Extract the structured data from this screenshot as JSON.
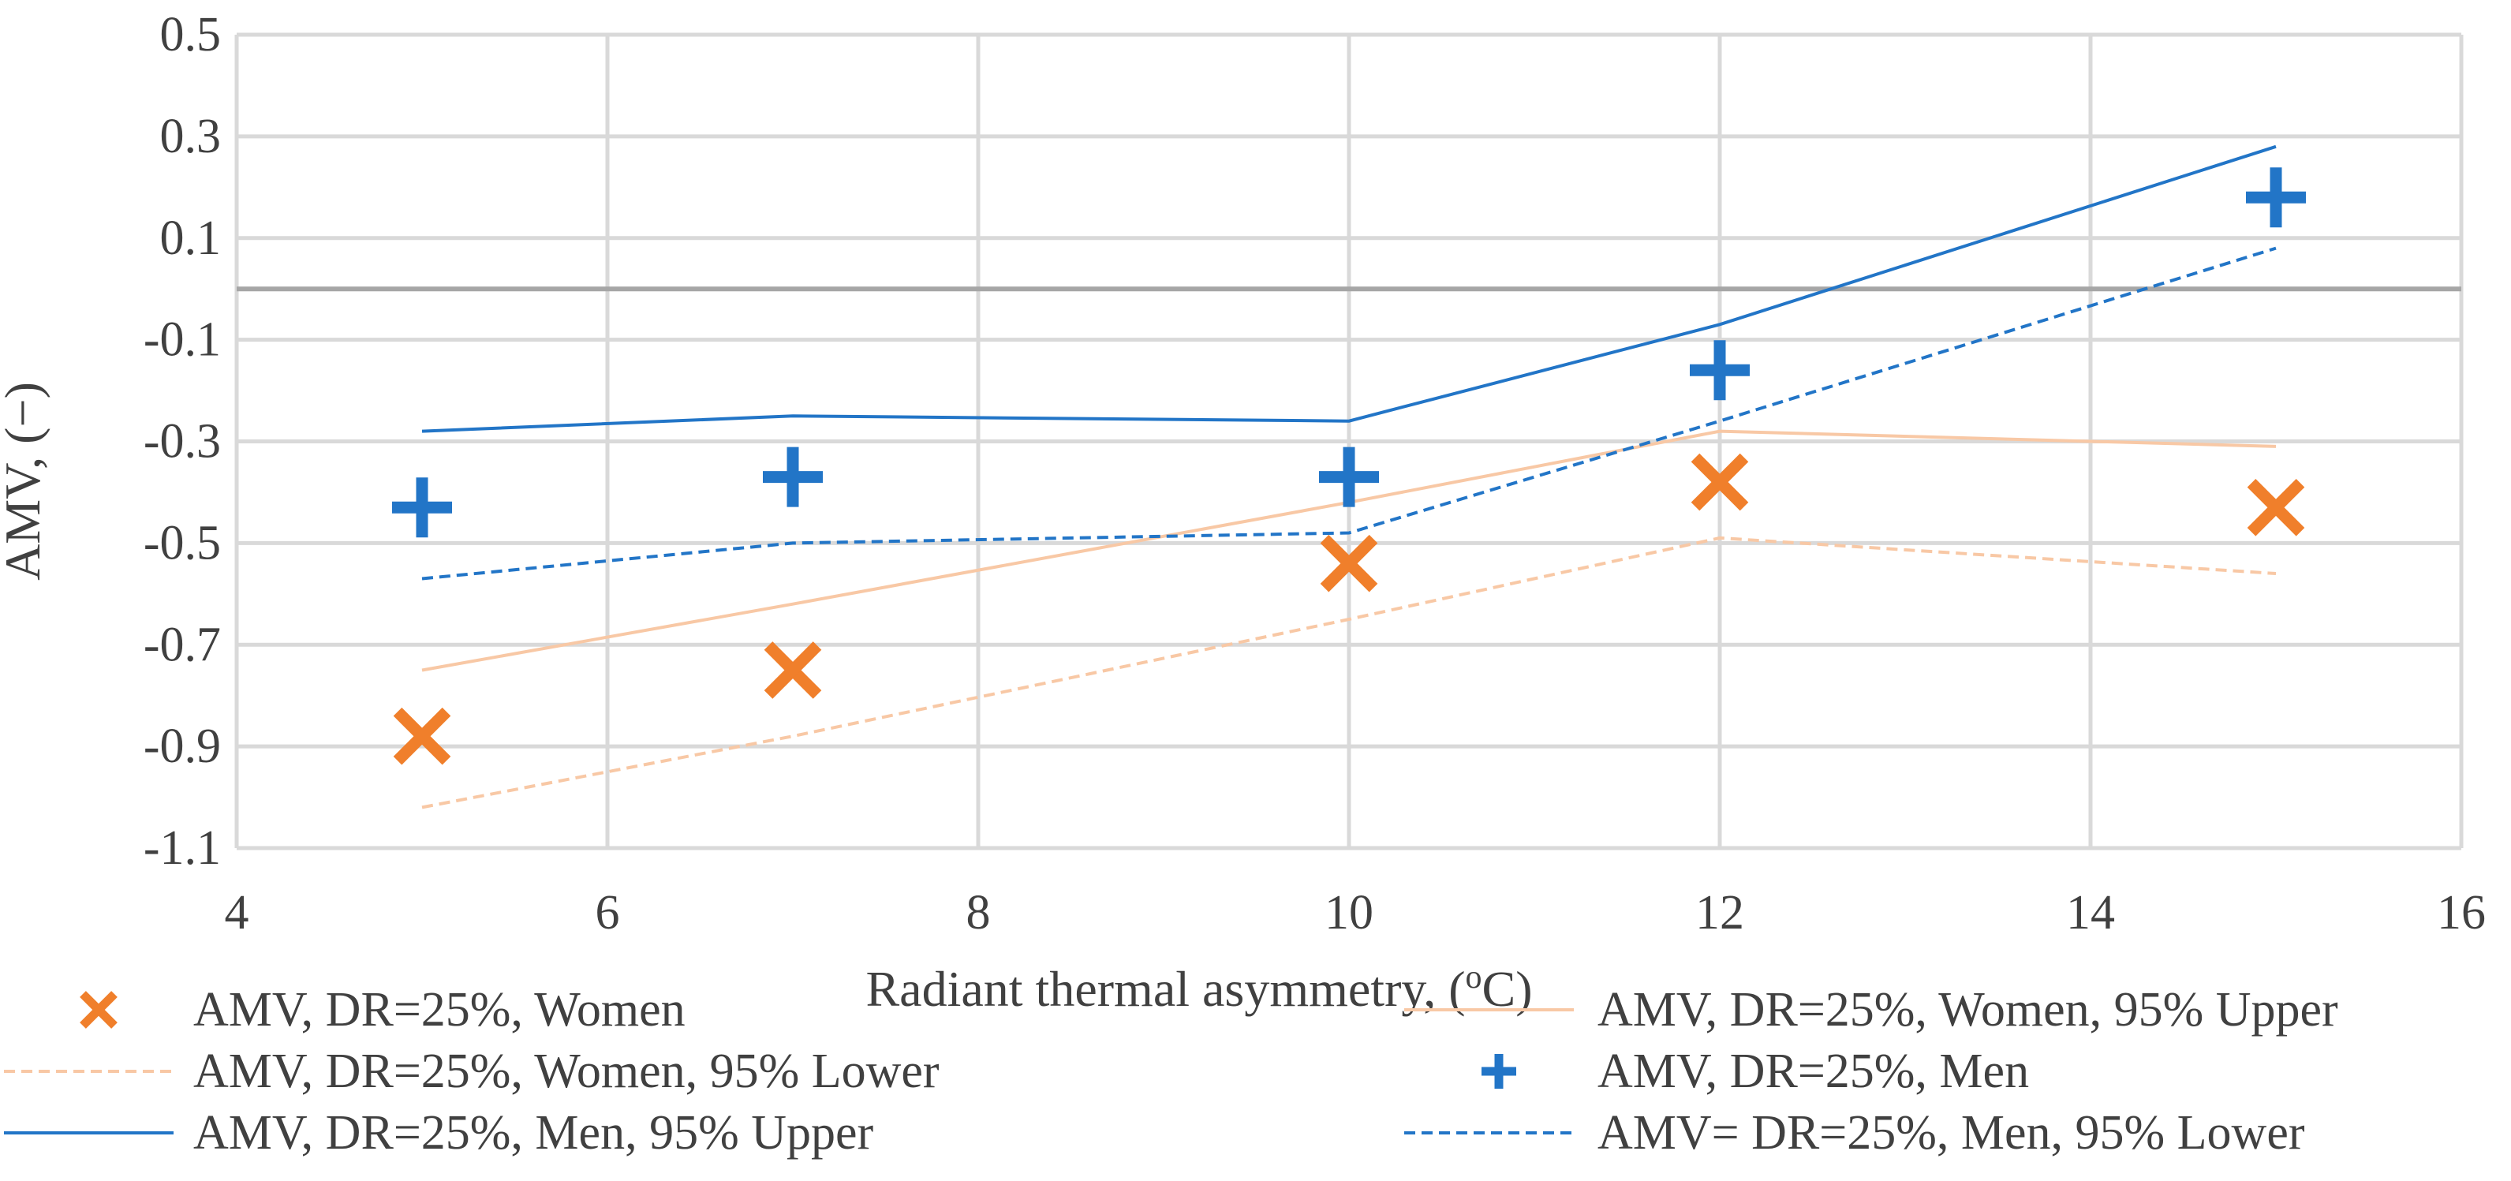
{
  "chart_data": {
    "type": "scatter",
    "title": "",
    "xlabel": "Radiant thermal asymmetry, (",
    "xlabel_sup": "o",
    "xlabel_suffix": "C)",
    "ylabel": "AMV, (−)",
    "xlim": [
      4,
      16
    ],
    "ylim": [
      -1.1,
      0.5
    ],
    "x_ticks": [
      4,
      6,
      8,
      10,
      12,
      14,
      16
    ],
    "x_tick_labels": [
      "4",
      "6",
      "8",
      "10",
      "12",
      "14",
      "16"
    ],
    "y_ticks": [
      0.5,
      0.3,
      0.1,
      -0.1,
      -0.3,
      -0.5,
      -0.7,
      -0.9,
      -1.1
    ],
    "y_tick_labels": [
      "0.5",
      "0.3",
      "0.1",
      "-0.1",
      "-0.3",
      "-0.5",
      "-0.7",
      "-0.9",
      "-1.1"
    ],
    "zero_line": 0,
    "grid": true,
    "legend_position": "bottom",
    "series": [
      {
        "name": "AMV, DR=25%, Women",
        "kind": "marker",
        "marker": "x",
        "color": "#f07f2b",
        "x": [
          5,
          7,
          10,
          12,
          15
        ],
        "y": [
          -0.88,
          -0.75,
          -0.54,
          -0.38,
          -0.43
        ]
      },
      {
        "name": "AMV, DR=25%, Women, 95% Upper",
        "kind": "line",
        "dash": "solid",
        "color": "#f8c8a5",
        "x": [
          5,
          7,
          10,
          12,
          15
        ],
        "y": [
          -0.75,
          -0.62,
          -0.42,
          -0.28,
          -0.31
        ]
      },
      {
        "name": "AMV, DR=25%, Women, 95% Lower",
        "kind": "line",
        "dash": "dashed",
        "color": "#f8c8a5",
        "x": [
          5,
          7,
          10,
          12,
          15
        ],
        "y": [
          -1.02,
          -0.88,
          -0.65,
          -0.49,
          -0.56
        ]
      },
      {
        "name": "AMV, DR=25%, Men",
        "kind": "marker",
        "marker": "plus",
        "color": "#2275c7",
        "x": [
          5,
          7,
          10,
          12,
          15
        ],
        "y": [
          -0.43,
          -0.37,
          -0.37,
          -0.16,
          0.18
        ]
      },
      {
        "name": "AMV, DR=25%, Men, 95% Upper",
        "kind": "line",
        "dash": "solid",
        "color": "#2275c7",
        "x": [
          5,
          7,
          10,
          12,
          15
        ],
        "y": [
          -0.28,
          -0.25,
          -0.26,
          -0.07,
          0.28
        ]
      },
      {
        "name": "AMV= DR=25%, Men, 95% Lower",
        "kind": "line",
        "dash": "dashed",
        "color": "#2275c7",
        "x": [
          5,
          7,
          10,
          12,
          15
        ],
        "y": [
          -0.57,
          -0.5,
          -0.48,
          -0.26,
          0.08
        ]
      }
    ]
  }
}
